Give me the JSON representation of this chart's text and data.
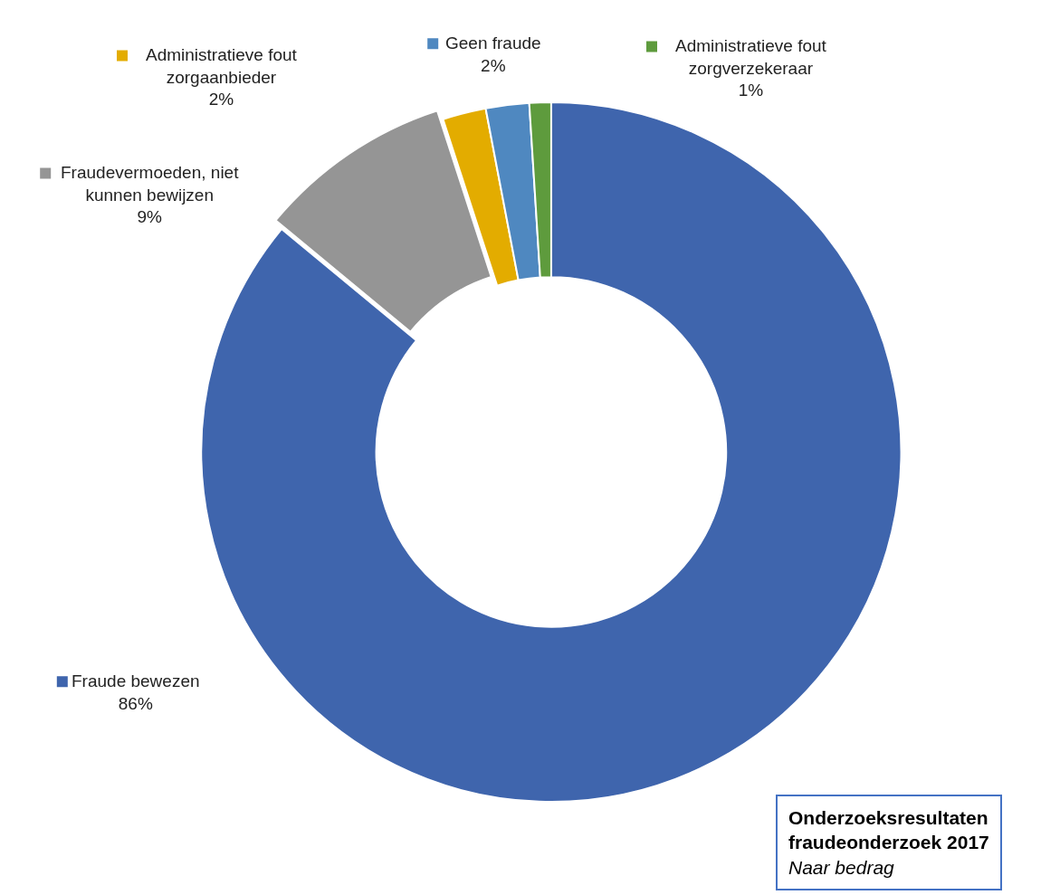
{
  "chart_data": {
    "type": "donut",
    "title": "Onderzoeksresultaten fraudeonderzoek 2017",
    "subtitle": "Naar bedrag",
    "categories": [
      "Fraude bewezen",
      "Fraudevermoeden, niet kunnen bewijzen",
      "Administratieve fout zorgaanbieder",
      "Geen fraude",
      "Administratieve fout zorgverzekeraar"
    ],
    "values": [
      86,
      9,
      2,
      2,
      1
    ],
    "colors": [
      "#3f65ad",
      "#959595",
      "#e3ac00",
      "#4f88c0",
      "#5e9b3d"
    ],
    "value_labels": [
      "86%",
      "9%",
      "2%",
      "2%",
      "1%"
    ],
    "legend": "left"
  }
}
